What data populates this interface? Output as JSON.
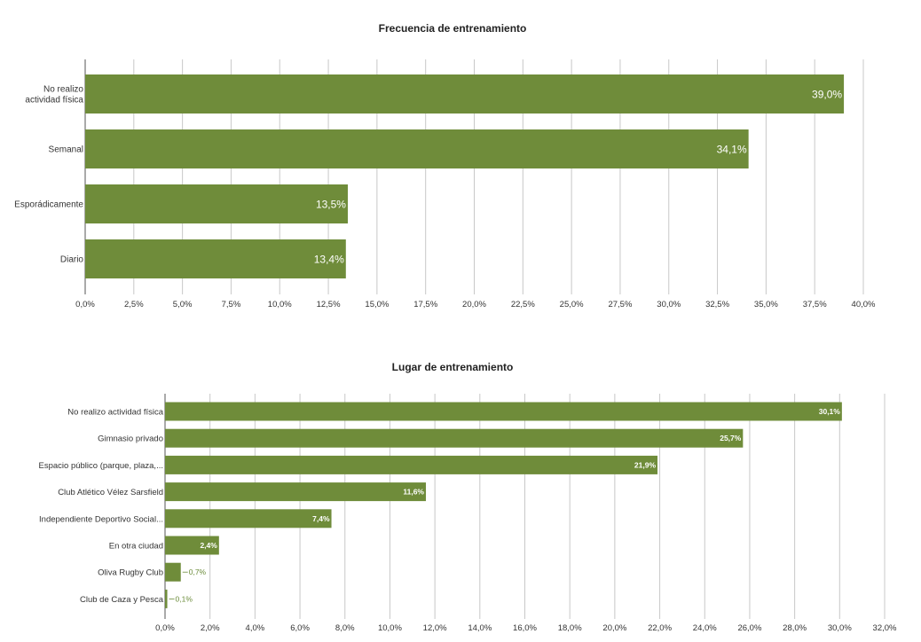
{
  "chart_data": [
    {
      "type": "bar",
      "orientation": "horizontal",
      "title": "Frecuencia de entrenamiento",
      "categories": [
        [
          "No realizo",
          "actividad física"
        ],
        [
          "Semanal"
        ],
        [
          "Esporádicamente"
        ],
        [
          "Diario"
        ]
      ],
      "values": [
        39.0,
        34.1,
        13.5,
        13.4
      ],
      "data_labels": [
        "39,0%",
        "34,1%",
        "13,5%",
        "13,4%"
      ],
      "xlim": [
        0,
        40
      ],
      "ticks": [
        "0,0%",
        "2,5%",
        "5,0%",
        "7,5%",
        "10,0%",
        "12,5%",
        "15,0%",
        "17,5%",
        "20,0%",
        "22,5%",
        "25,0%",
        "27,5%",
        "30,0%",
        "32,5%",
        "35,0%",
        "37,5%",
        "40,0%"
      ],
      "grid": true,
      "color": "#6f8c3a"
    },
    {
      "type": "bar",
      "orientation": "horizontal",
      "title": "Lugar de entrenamiento",
      "categories": [
        [
          "No realizo actividad física"
        ],
        [
          "Gimnasio privado"
        ],
        [
          "Espacio público (parque, plaza,..."
        ],
        [
          "Club Atlético Vélez Sarsfield"
        ],
        [
          "Independiente Deportivo Social..."
        ],
        [
          "En otra ciudad"
        ],
        [
          "Oliva Rugby Club"
        ],
        [
          "Club de Caza y Pesca"
        ]
      ],
      "values": [
        30.1,
        25.7,
        21.9,
        11.6,
        7.4,
        2.4,
        0.7,
        0.1
      ],
      "data_labels": [
        "30,1%",
        "25,7%",
        "21,9%",
        "11,6%",
        "7,4%",
        "2,4%",
        "0,7%",
        "0,1%"
      ],
      "xlim": [
        0,
        32
      ],
      "ticks": [
        "0,0%",
        "2,0%",
        "4,0%",
        "6,0%",
        "8,0%",
        "10,0%",
        "12,0%",
        "14,0%",
        "16,0%",
        "18,0%",
        "20,0%",
        "22,0%",
        "24,0%",
        "26,0%",
        "28,0%",
        "30,0%",
        "32,0%"
      ],
      "grid": true,
      "color": "#6f8c3a"
    }
  ]
}
